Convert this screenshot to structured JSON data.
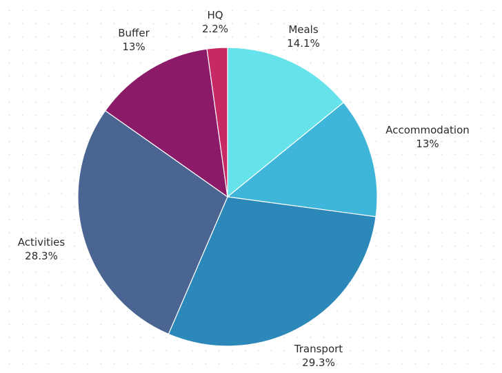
{
  "chart_data": {
    "type": "pie",
    "title": "",
    "grid": true,
    "legend": "none",
    "start_angle_deg": 0,
    "direction": "clockwise",
    "slices": [
      {
        "label": "Meals",
        "value": 14.1,
        "value_label": "14.1%",
        "color": "#66e2ea"
      },
      {
        "label": "Accommodation",
        "value": 13,
        "value_label": "13%",
        "color": "#3fb6d9"
      },
      {
        "label": "Transport",
        "value": 29.3,
        "value_label": "29.3%",
        "color": "#2c88b8"
      },
      {
        "label": "Activities",
        "value": 28.3,
        "value_label": "28.3%",
        "color": "#4a6592"
      },
      {
        "label": "Buffer",
        "value": 13,
        "value_label": "13%",
        "color": "#8b1a68"
      },
      {
        "label": "HQ",
        "value": 2.2,
        "value_label": "2.2%",
        "color": "#c82863"
      }
    ]
  }
}
